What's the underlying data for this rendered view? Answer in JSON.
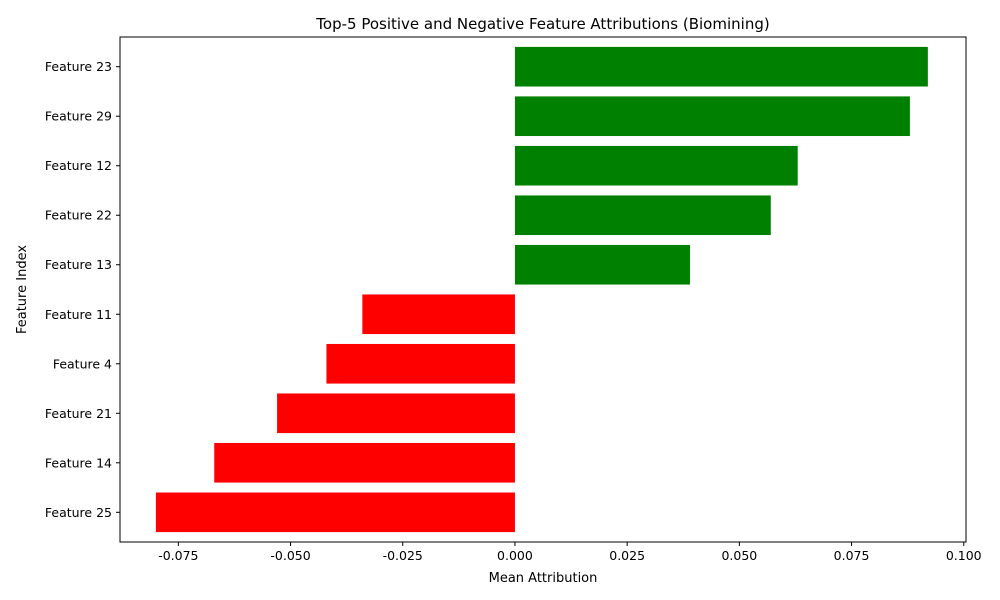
{
  "chart_data": {
    "type": "bar",
    "orientation": "horizontal",
    "title": "Top-5 Positive and Negative Feature Attributions (Biomining)",
    "xlabel": "Mean Attribution",
    "ylabel": "Feature Index",
    "xlim": [
      -0.088,
      0.1005
    ],
    "xticks": [
      "-0.075",
      "-0.050",
      "-0.025",
      "0.000",
      "0.025",
      "0.050",
      "0.075",
      "0.100"
    ],
    "xtick_values": [
      -0.075,
      -0.05,
      -0.025,
      0.0,
      0.025,
      0.05,
      0.075,
      0.1
    ],
    "grid": false,
    "categories": [
      "Feature 23",
      "Feature 29",
      "Feature 12",
      "Feature 22",
      "Feature 13",
      "Feature 11",
      "Feature 4",
      "Feature 21",
      "Feature 14",
      "Feature 25"
    ],
    "values": [
      0.092,
      0.088,
      0.063,
      0.057,
      0.039,
      -0.034,
      -0.042,
      -0.053,
      -0.067,
      -0.08
    ],
    "colors": {
      "positive": "#008000",
      "negative": "#ff0000"
    }
  }
}
